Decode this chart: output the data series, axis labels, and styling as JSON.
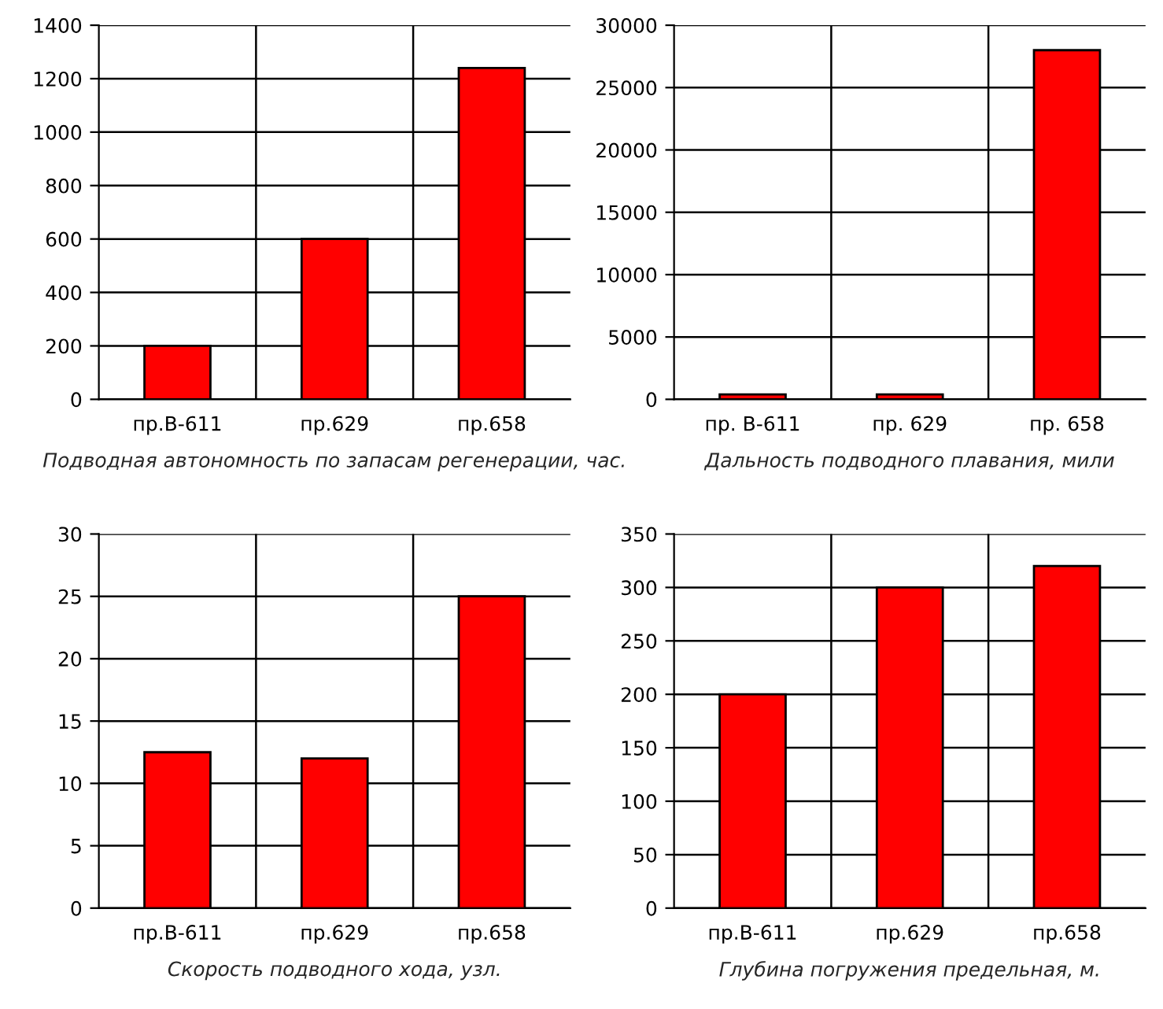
{
  "chart_data": [
    {
      "type": "bar",
      "categories": [
        "пр.В-611",
        "пр.629",
        "пр.658"
      ],
      "values": [
        200,
        600,
        1240
      ],
      "color": "#ff0000",
      "xlabel": "Подводная автономность по запасам регенерации, час.",
      "ylim": [
        0,
        1400
      ],
      "yticks": [
        0,
        200,
        400,
        600,
        800,
        1000,
        1200,
        1400
      ],
      "grid": true,
      "legend": false
    },
    {
      "type": "bar",
      "categories": [
        "пр. В-611",
        "пр. 629",
        "пр. 658"
      ],
      "values": [
        400,
        400,
        28000
      ],
      "color": "#ff0000",
      "xlabel": "Дальность подводного плавания, мили",
      "ylim": [
        0,
        30000
      ],
      "yticks": [
        0,
        5000,
        10000,
        15000,
        20000,
        25000,
        30000
      ],
      "grid": true,
      "legend": false
    },
    {
      "type": "bar",
      "categories": [
        "пр.В-611",
        "пр.629",
        "пр.658"
      ],
      "values": [
        12.5,
        12,
        25
      ],
      "color": "#ff0000",
      "xlabel": "Скорость подводного хода, узл.",
      "ylim": [
        0,
        30
      ],
      "yticks": [
        0,
        5,
        10,
        15,
        20,
        25,
        30
      ],
      "grid": true,
      "legend": false
    },
    {
      "type": "bar",
      "categories": [
        "пр.В-611",
        "пр.629",
        "пр.658"
      ],
      "values": [
        200,
        300,
        320
      ],
      "color": "#ff0000",
      "xlabel": "Глубина погружения предельная, м.",
      "ylim": [
        0,
        350
      ],
      "yticks": [
        0,
        50,
        100,
        150,
        200,
        250,
        300,
        350
      ],
      "grid": true,
      "legend": false
    }
  ]
}
